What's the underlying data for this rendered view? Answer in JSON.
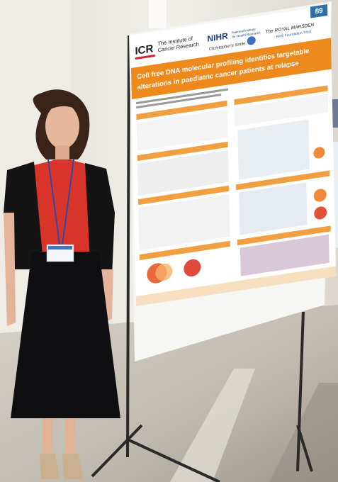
{
  "poster": {
    "number": "89",
    "logos": {
      "icr": "ICR",
      "icr_name_lines": [
        "The Institute of",
        "Cancer Research"
      ],
      "nihr": "NIHR",
      "nihr_name_lines": [
        "National Institute",
        "for Health Research"
      ],
      "charity": "Christopher's Smile",
      "royal_marsden": "The ROYAL MARSDEN",
      "royal_marsden_sub": "NHS Foundation Trust"
    },
    "title_lines": [
      "Cell free DNA molecular profiling identifies targetable",
      "alterations in paediatric cancer patients at relapse"
    ]
  }
}
